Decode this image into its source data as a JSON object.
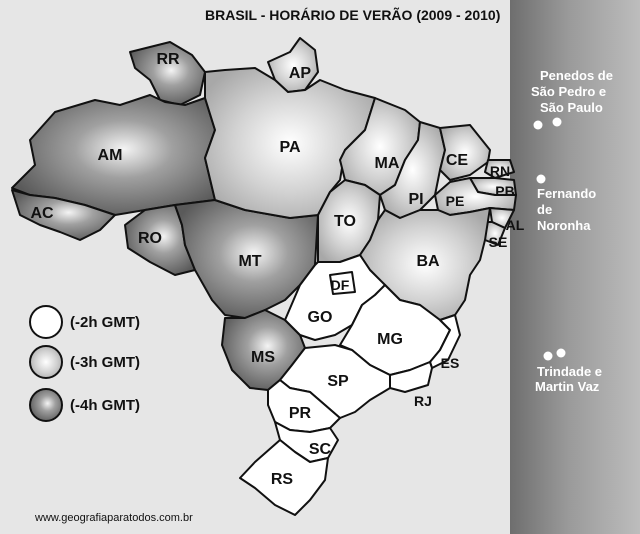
{
  "title": "BRASIL - HORÁRIO DE VERÃO (2009 - 2010)",
  "states": {
    "RR": "RR",
    "AP": "AP",
    "AM": "AM",
    "PA": "PA",
    "MA": "MA",
    "CE": "CE",
    "RN": "RN",
    "PB": "PB",
    "PI": "PI",
    "PE": "PE",
    "AL": "AL",
    "SE": "SE",
    "AC": "AC",
    "RO": "RO",
    "TO": "TO",
    "BA": "BA",
    "MT": "MT",
    "DF": "DF",
    "GO": "GO",
    "MG": "MG",
    "ES": "ES",
    "MS": "MS",
    "SP": "SP",
    "RJ": "RJ",
    "PR": "PR",
    "SC": "SC",
    "RS": "RS"
  },
  "islands": {
    "penedos": [
      "Penedos de",
      "São Pedro e",
      "São Paulo"
    ],
    "noronha": [
      "Fernando",
      "de",
      "Noronha"
    ],
    "trindade": [
      "Trindade e",
      "Martin Vaz"
    ]
  },
  "legend": {
    "minus2": "(-2h GMT)",
    "minus3": "(-3h GMT)",
    "minus4": "(-4h GMT)"
  },
  "source_url": "www.geografiaparatodos.com.br",
  "colors": {
    "background": "#e6e6e6",
    "ocean_band": "#7a7a7a",
    "zone_minus2": "#ffffff",
    "zone_minus3": "#d0d0d0",
    "zone_minus4": "#8a8a8a"
  }
}
